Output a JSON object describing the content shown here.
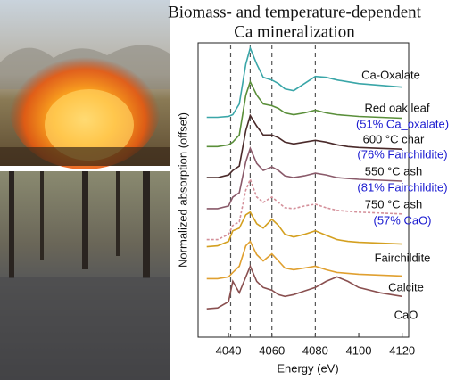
{
  "chart_data": {
    "type": "line",
    "title": [
      "Biomass- and temperature-dependent",
      "Ca mineralization"
    ],
    "xlabel": "Energy (eV)",
    "ylabel": "Normalized absorption (offset)",
    "xlim": [
      4026,
      4123
    ],
    "xticks": [
      4040,
      4060,
      4080,
      4100,
      4120
    ],
    "ylim": [
      0,
      34
    ],
    "vlines": [
      4041,
      4050,
      4060,
      4080
    ],
    "x": [
      4030,
      4035,
      4040,
      4042,
      4045,
      4048,
      4050,
      4053,
      4056,
      4060,
      4063,
      4066,
      4070,
      4075,
      4080,
      4085,
      4090,
      4095,
      4100,
      4110,
      4120
    ],
    "series": [
      {
        "name": "Ca-Oxalate",
        "color": "#3aa6a8",
        "values": [
          24.8,
          24.8,
          24.9,
          25.1,
          26.3,
          30.8,
          32.6,
          30.8,
          29.3,
          29.0,
          28.6,
          28.0,
          27.8,
          28.6,
          29.4,
          29.3,
          29.0,
          28.8,
          28.6,
          28.4,
          28.2
        ]
      },
      {
        "name": "Red oak leaf",
        "annotation": "(51% Ca_oxalate)",
        "color": "#5a8f3a",
        "values": [
          21.5,
          21.5,
          21.7,
          22.0,
          22.8,
          27.3,
          28.8,
          27.3,
          26.3,
          26.1,
          25.8,
          25.3,
          25.1,
          25.3,
          25.6,
          25.3,
          25.1,
          25.0,
          24.9,
          24.8,
          24.7
        ]
      },
      {
        "name": "600 °C char",
        "annotation": "(76% Fairchildite)",
        "color": "#4a2a2a",
        "values": [
          18.0,
          18.0,
          18.3,
          18.8,
          19.3,
          23.3,
          25.0,
          23.8,
          22.8,
          22.8,
          22.5,
          22.0,
          21.8,
          22.0,
          22.2,
          22.0,
          21.7,
          21.5,
          21.4,
          21.3,
          21.2
        ]
      },
      {
        "name": "550 °C ash",
        "annotation": "(81% Fairchildite)",
        "color": "#8a5a6a",
        "values": [
          14.5,
          14.5,
          14.8,
          15.8,
          16.3,
          19.8,
          21.3,
          19.6,
          18.8,
          19.2,
          18.8,
          18.2,
          18.0,
          18.2,
          18.5,
          18.3,
          18.0,
          17.9,
          17.8,
          17.7,
          17.6
        ]
      },
      {
        "name": "750 °C ash",
        "annotation": "(57% CaO)",
        "color": "#d4909a",
        "dashed": true,
        "values": [
          11.0,
          11.0,
          11.6,
          12.6,
          13.0,
          16.6,
          17.8,
          15.8,
          15.2,
          15.8,
          15.2,
          14.6,
          14.5,
          14.8,
          15.0,
          14.6,
          14.3,
          14.2,
          14.1,
          14.0,
          13.9
        ]
      },
      {
        "name": "Fairchildite",
        "color": "#d4a020",
        "values": [
          10.2,
          10.3,
          10.8,
          12.0,
          12.3,
          13.8,
          14.1,
          12.8,
          12.3,
          13.3,
          12.6,
          11.6,
          11.3,
          11.6,
          12.0,
          11.5,
          11.0,
          10.8,
          10.7,
          10.6,
          10.5
        ]
      },
      {
        "name": "Calcite",
        "color": "#e0a030",
        "values": [
          6.6,
          6.6,
          6.8,
          7.3,
          8.0,
          10.3,
          10.8,
          9.3,
          8.6,
          9.4,
          8.6,
          7.8,
          7.6,
          7.8,
          8.0,
          7.6,
          7.3,
          7.2,
          7.1,
          7.0,
          6.9
        ]
      },
      {
        "name": "CaO",
        "color": "#8a5050",
        "values": [
          3.2,
          3.3,
          4.0,
          6.3,
          5.0,
          6.8,
          8.0,
          6.3,
          5.6,
          5.3,
          4.8,
          4.6,
          4.8,
          5.2,
          5.6,
          6.3,
          6.8,
          6.3,
          5.6,
          5.0,
          4.6
        ]
      }
    ]
  }
}
